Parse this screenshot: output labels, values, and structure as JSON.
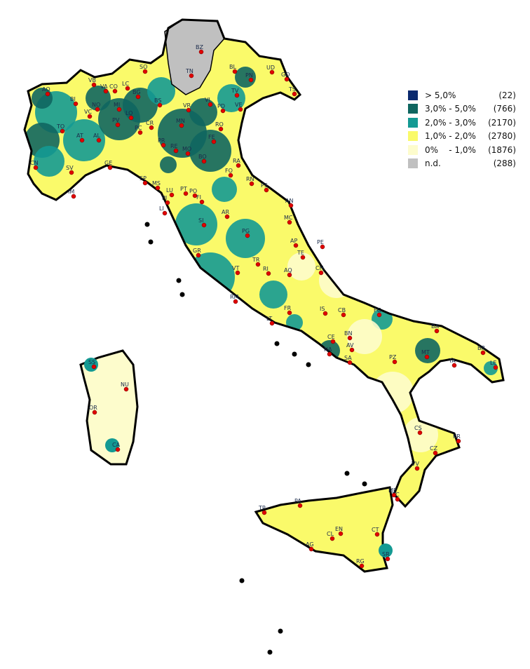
{
  "legend": {
    "items": [
      {
        "label": "> 5,0%",
        "count": "(22)",
        "color": "#0b2a6e"
      },
      {
        "label": "3,0% - 5,0%",
        "count": "(766)",
        "color": "#0f6660"
      },
      {
        "label": "2,0% - 3,0%",
        "count": "(2170)",
        "color": "#149a93"
      },
      {
        "label": "1,0% - 2,0%",
        "count": "(2780)",
        "color": "#fafa6a"
      },
      {
        "label": "0%    - 1,0%",
        "count": "(1876)",
        "color": "#fdfccc"
      },
      {
        "label": "n.d.",
        "count": "(288)",
        "color": "#c0c0c0"
      }
    ]
  },
  "provinces": [
    "BZ",
    "TN",
    "SO",
    "BL",
    "PN",
    "UD",
    "GO",
    "TS",
    "AO",
    "VB",
    "VA",
    "CO",
    "LC",
    "BG",
    "BI",
    "NO",
    "MI",
    "BS",
    "VR",
    "VI",
    "TV",
    "PD",
    "VE",
    "TO",
    "VC",
    "PV",
    "LO",
    "CR",
    "MN",
    "RO",
    "PC",
    "AT",
    "AL",
    "PR",
    "RE",
    "MO",
    "FE",
    "BO",
    "RA",
    "CN",
    "SV",
    "GE",
    "FO",
    "RN",
    "PS",
    "SP",
    "MS",
    "LU",
    "PT",
    "PO",
    "FI",
    "PI",
    "LI",
    "AN",
    "AR",
    "MC",
    "SI",
    "PG",
    "AP",
    "TE",
    "PE",
    "GR",
    "TR",
    "CH",
    "RI",
    "VT",
    "AQ",
    "RM",
    "FR",
    "IS",
    "CB",
    "FG",
    "LT",
    "BN",
    "CE",
    "AV",
    "NA",
    "SA",
    "BA",
    "MT",
    "BR",
    "TA",
    "LE",
    "PZ",
    "SS",
    "NU",
    "OR",
    "CA",
    "CS",
    "KR",
    "CZ",
    "VV",
    "RC",
    "ME",
    "TP",
    "PA",
    "EN",
    "CT",
    "CL",
    "AG",
    "RG",
    "SR",
    "IM"
  ],
  "colors": {
    "border": "#000000",
    "capital_dot": "#e00000"
  }
}
